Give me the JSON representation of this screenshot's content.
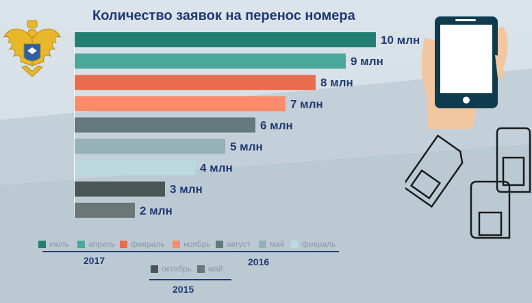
{
  "title": "Количество заявок на перенос номера",
  "chart_data": {
    "type": "bar",
    "orientation": "horizontal",
    "title": "Количество заявок на перенос номера",
    "unit": "млн",
    "xlim": [
      0,
      10
    ],
    "categories": [
      "июль 2017",
      "апрель 2017",
      "февраль 2017",
      "ноябрь 2016",
      "август 2016",
      "май 2016",
      "февраль 2016",
      "октябрь 2015",
      "май 2015"
    ],
    "values": [
      10,
      9,
      8,
      7,
      6,
      5,
      4,
      3,
      2
    ],
    "data_labels": [
      "10 млн",
      "9 млн",
      "8 млн",
      "7 млн",
      "6 млн",
      "5 млн",
      "4 млн",
      "3 млн",
      "2 млн"
    ],
    "colors": [
      "#237f74",
      "#4aa79c",
      "#e96c4f",
      "#fb8b6b",
      "#63797c",
      "#95b2b6",
      "#bcdadd",
      "#4a5655",
      "#6b7776"
    ],
    "grid": false
  },
  "legend": {
    "groups": [
      {
        "year": "2017",
        "items": [
          {
            "label": "июль",
            "color": "#237f74"
          },
          {
            "label": "апрель",
            "color": "#4aa79c"
          },
          {
            "label": "февраль",
            "color": "#e96c4f"
          }
        ]
      },
      {
        "year": "2016",
        "items": [
          {
            "label": "ноябрь",
            "color": "#fb8b6b"
          },
          {
            "label": "август",
            "color": "#63797c"
          },
          {
            "label": "май",
            "color": "#95b2b6"
          },
          {
            "label": "февраль",
            "color": "#bcdadd"
          }
        ]
      },
      {
        "year": "2015",
        "items": [
          {
            "label": "октябрь",
            "color": "#4a5655"
          },
          {
            "label": "май",
            "color": "#6b7776"
          }
        ]
      }
    ]
  },
  "icons": [
    "emblem-icon",
    "smartphone-icon",
    "sim-card-icon"
  ]
}
